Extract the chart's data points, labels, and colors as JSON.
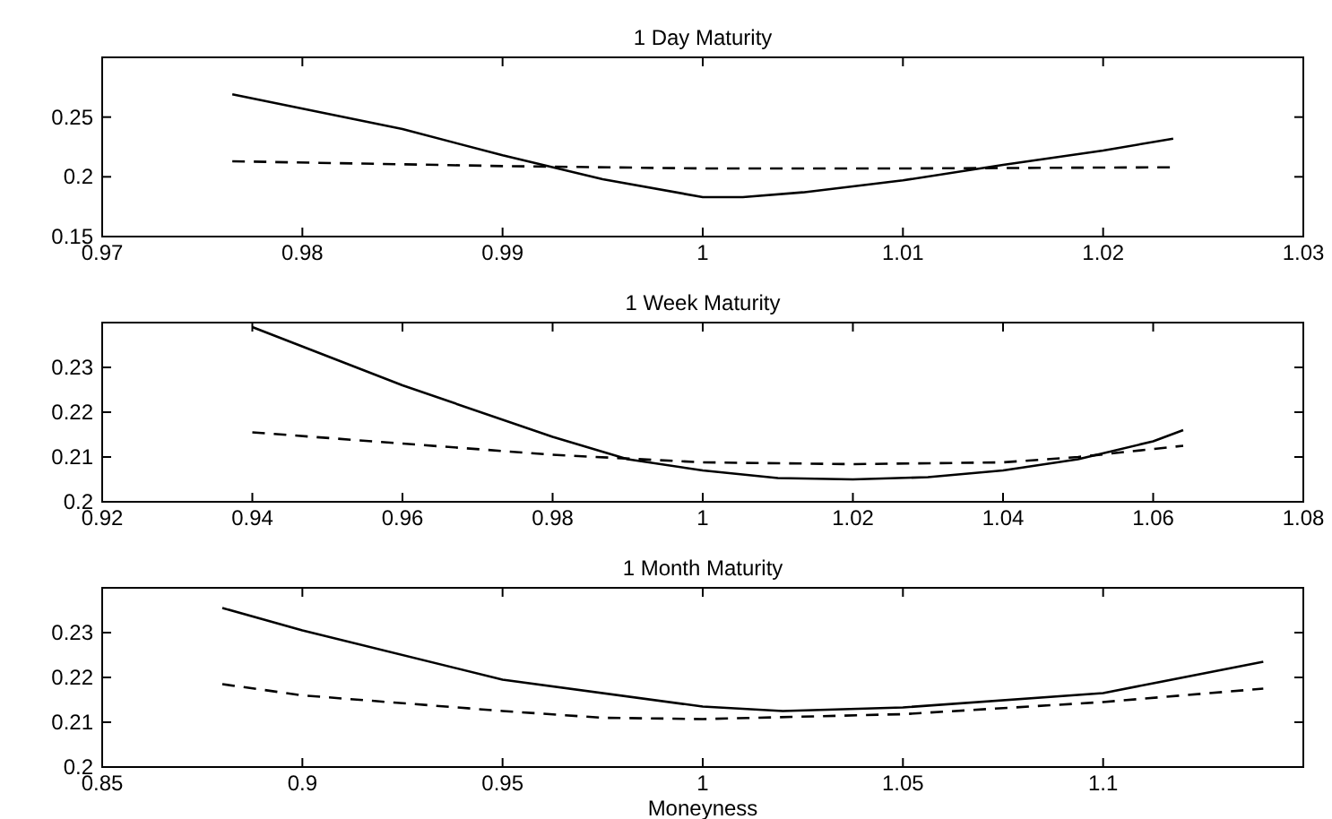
{
  "chart_data": [
    {
      "type": "line",
      "title": "1 Day Maturity",
      "xlim": [
        0.97,
        1.03
      ],
      "xticks": [
        0.97,
        0.98,
        0.99,
        1,
        1.01,
        1.02,
        1.03
      ],
      "ylim": [
        0.15,
        0.3
      ],
      "yticks": [
        0.15,
        0.2,
        0.25
      ],
      "grid": false,
      "series": [
        {
          "color": "#000000",
          "line_style": "solid",
          "x": [
            0.9765,
            0.985,
            0.99,
            0.995,
            1.0,
            1.002,
            1.005,
            1.01,
            1.015,
            1.02,
            1.0235
          ],
          "values": [
            0.269,
            0.24,
            0.218,
            0.198,
            0.183,
            0.183,
            0.187,
            0.197,
            0.21,
            0.222,
            0.232
          ]
        },
        {
          "color": "#000000",
          "line_style": "dashed",
          "x": [
            0.9765,
            0.99,
            1.0,
            1.01,
            1.0235
          ],
          "values": [
            0.213,
            0.209,
            0.207,
            0.207,
            0.208
          ]
        }
      ]
    },
    {
      "type": "line",
      "title": "1 Week Maturity",
      "xlim": [
        0.92,
        1.08
      ],
      "xticks": [
        0.92,
        0.94,
        0.96,
        0.98,
        1,
        1.02,
        1.04,
        1.06,
        1.08
      ],
      "ylim": [
        0.2,
        0.24
      ],
      "yticks": [
        0.2,
        0.21,
        0.22,
        0.23
      ],
      "grid": false,
      "series": [
        {
          "color": "#000000",
          "line_style": "solid",
          "x": [
            0.94,
            0.96,
            0.98,
            0.99,
            1.0,
            1.01,
            1.02,
            1.03,
            1.04,
            1.05,
            1.06,
            1.064
          ],
          "values": [
            0.239,
            0.226,
            0.2145,
            0.2095,
            0.207,
            0.2053,
            0.205,
            0.2055,
            0.207,
            0.2095,
            0.2135,
            0.216
          ]
        },
        {
          "color": "#000000",
          "line_style": "dashed",
          "x": [
            0.94,
            0.96,
            0.98,
            1.0,
            1.02,
            1.04,
            1.05,
            1.064
          ],
          "values": [
            0.2155,
            0.213,
            0.2105,
            0.2088,
            0.2084,
            0.2088,
            0.21,
            0.2125
          ]
        }
      ]
    },
    {
      "type": "line",
      "title": "1 Month Maturity",
      "xlabel": "Moneyness",
      "xlim": [
        0.85,
        1.15
      ],
      "xticks": [
        0.85,
        0.9,
        0.95,
        1,
        1.05,
        1.1
      ],
      "ylim": [
        0.2,
        0.24
      ],
      "yticks": [
        0.2,
        0.21,
        0.22,
        0.23
      ],
      "grid": false,
      "series": [
        {
          "color": "#000000",
          "line_style": "solid",
          "x": [
            0.88,
            0.9,
            0.95,
            1.0,
            1.02,
            1.05,
            1.1,
            1.14
          ],
          "values": [
            0.2355,
            0.2305,
            0.2195,
            0.2135,
            0.2125,
            0.2133,
            0.2165,
            0.2235
          ]
        },
        {
          "color": "#000000",
          "line_style": "dashed",
          "x": [
            0.88,
            0.9,
            0.95,
            0.975,
            1.0,
            1.05,
            1.1,
            1.14
          ],
          "values": [
            0.2185,
            0.216,
            0.2125,
            0.211,
            0.2107,
            0.2118,
            0.2145,
            0.2175
          ]
        }
      ]
    }
  ]
}
